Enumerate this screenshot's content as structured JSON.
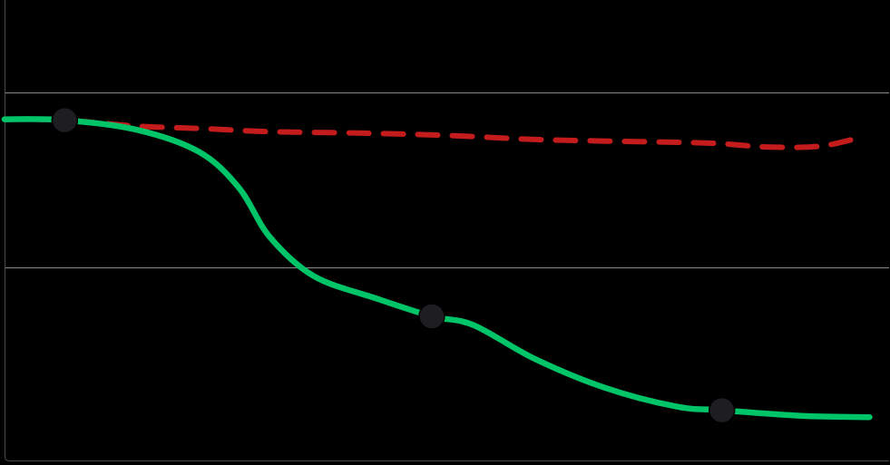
{
  "chart_data": {
    "type": "line",
    "xlim": [
      0,
      100
    ],
    "ylim": [
      0,
      100
    ],
    "grid": {
      "horizontal": true,
      "values": [
        0,
        42,
        80
      ]
    },
    "legend": "none",
    "series": [
      {
        "style": "solid",
        "color": "#00c468",
        "points": [
          [
            0,
            74.1
          ],
          [
            6.8,
            73.9
          ],
          [
            15,
            71.8
          ],
          [
            22,
            67.0
          ],
          [
            26.5,
            59.2
          ],
          [
            30,
            48.5
          ],
          [
            35,
            40.0
          ],
          [
            42,
            35.2
          ],
          [
            48.3,
            31.3
          ],
          [
            53,
            29.4
          ],
          [
            60,
            22.0
          ],
          [
            68,
            15.7
          ],
          [
            76,
            11.7
          ],
          [
            81.1,
            10.9
          ],
          [
            90,
            9.7
          ],
          [
            97.8,
            9.4
          ]
        ]
      },
      {
        "style": "dashed",
        "color": "#c41c1c",
        "points": [
          [
            0,
            74.1
          ],
          [
            6.8,
            73.9
          ],
          [
            15,
            72.6
          ],
          [
            22,
            72.1
          ],
          [
            30,
            71.4
          ],
          [
            40,
            71.1
          ],
          [
            50,
            70.6
          ],
          [
            60,
            69.7
          ],
          [
            70,
            69.3
          ],
          [
            80,
            68.9
          ],
          [
            86,
            68.1
          ],
          [
            92,
            68.2
          ],
          [
            96.3,
            69.9
          ]
        ]
      }
    ],
    "markers": [
      {
        "x": 6.8,
        "y": 73.9
      },
      {
        "x": 48.3,
        "y": 31.3
      },
      {
        "x": 81.1,
        "y": 10.9
      }
    ],
    "colors": {
      "background": "#000000",
      "grid": "#8a8a8a",
      "frame": "#4a4a4a",
      "marker": "#1e1e22"
    }
  }
}
